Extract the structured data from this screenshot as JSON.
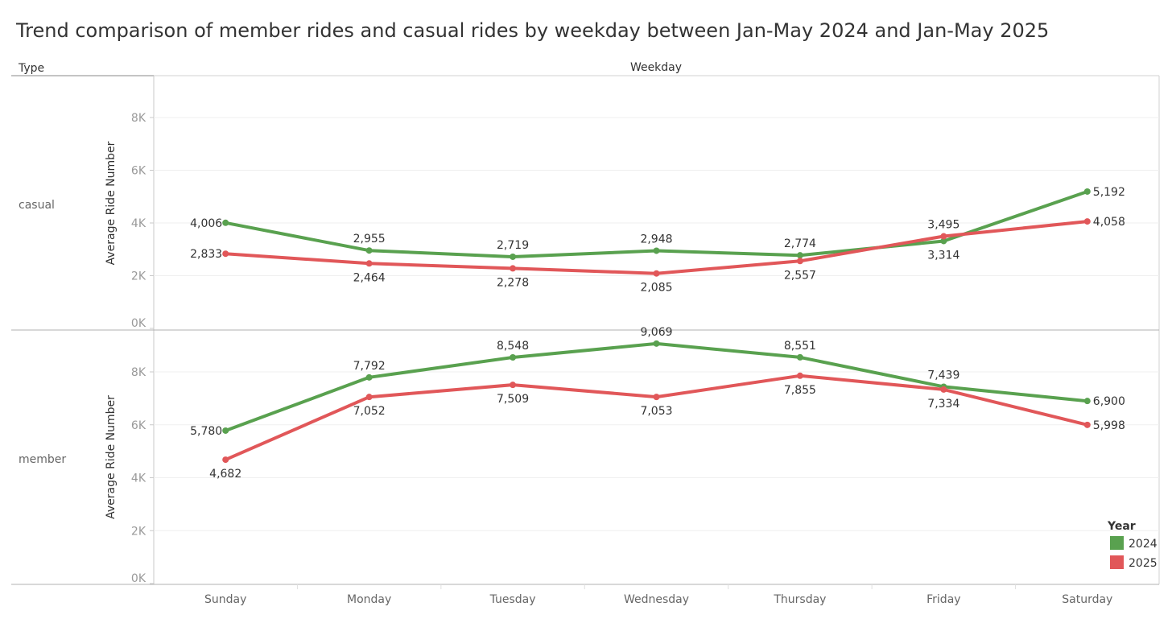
{
  "title": "Trend comparison of member rides and casual rides by weekday between Jan-May 2024 and Jan-May 2025",
  "header": {
    "row_dimension": "Type",
    "column_dimension": "Weekday"
  },
  "legend": {
    "title": "Year",
    "position": "bottom-right",
    "items": [
      {
        "label": "2024",
        "color": "#59a14f"
      },
      {
        "label": "2025",
        "color": "#e15759"
      }
    ]
  },
  "chart_data": {
    "type": "line",
    "categories": [
      "Sunday",
      "Monday",
      "Tuesday",
      "Wednesday",
      "Thursday",
      "Friday",
      "Saturday"
    ],
    "ylabel": "Average Ride Number",
    "ylim": [
      0,
      9500
    ],
    "yticks": [
      {
        "value": 0,
        "label": "0K"
      },
      {
        "value": 2000,
        "label": "2K"
      },
      {
        "value": 4000,
        "label": "4K"
      },
      {
        "value": 6000,
        "label": "6K"
      },
      {
        "value": 8000,
        "label": "8K"
      }
    ],
    "grid": true,
    "panels": [
      {
        "name": "casual",
        "series": [
          {
            "name": "2024",
            "color": "#59a14f",
            "values": [
              4006,
              2955,
              2719,
              2948,
              2774,
              3314,
              5192
            ],
            "labels": [
              "4,006",
              "2,955",
              "2,719",
              "2,948",
              "2,774",
              "3,314",
              "5,192"
            ]
          },
          {
            "name": "2025",
            "color": "#e15759",
            "values": [
              2833,
              2464,
              2278,
              2085,
              2557,
              3495,
              4058
            ],
            "labels": [
              "2,833",
              "2,464",
              "2,278",
              "2,085",
              "2,557",
              "3,495",
              "4,058"
            ]
          }
        ]
      },
      {
        "name": "member",
        "series": [
          {
            "name": "2024",
            "color": "#59a14f",
            "values": [
              5780,
              7792,
              8548,
              9069,
              8551,
              7439,
              6900
            ],
            "labels": [
              "5,780",
              "7,792",
              "8,548",
              "9,069",
              "8,551",
              "7,439",
              "6,900"
            ]
          },
          {
            "name": "2025",
            "color": "#e15759",
            "values": [
              4682,
              7052,
              7509,
              7053,
              7855,
              7334,
              5998
            ],
            "labels": [
              "4,682",
              "7,052",
              "7,509",
              "7,053",
              "7,855",
              "7,334",
              "5,998"
            ]
          }
        ]
      }
    ]
  }
}
